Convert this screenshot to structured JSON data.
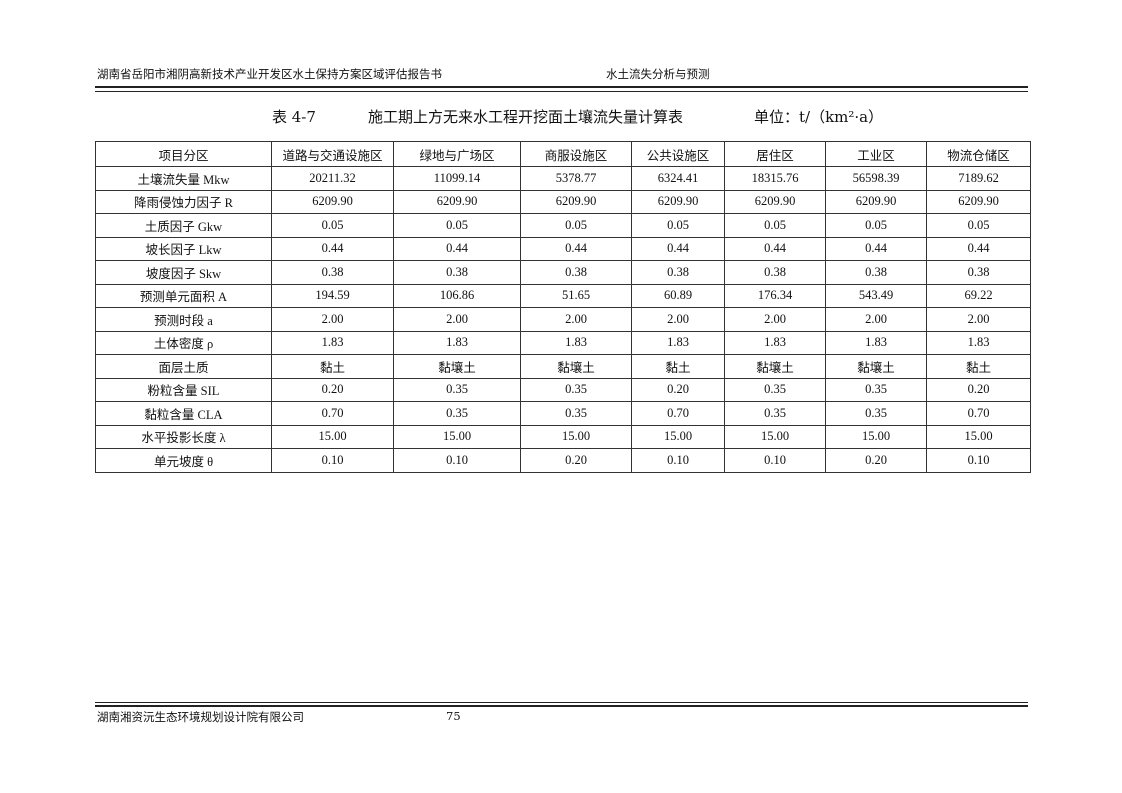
{
  "header": {
    "left": "湖南省岳阳市湘阴高新技术产业开发区水土保持方案区域评估报告书",
    "right": "水土流失分析与预测"
  },
  "caption": {
    "number": "表 4-7",
    "title": "施工期上方无来水工程开挖面土壤流失量计算表",
    "unit": "单位：t/（km²·a）"
  },
  "table": {
    "columns": [
      "项目分区",
      "道路与交通设施区",
      "绿地与广场区",
      "商服设施区",
      "公共设施区",
      "居住区",
      "工业区",
      "物流仓储区"
    ],
    "rows": [
      [
        "土壤流失量 Mkw",
        "20211.32",
        "11099.14",
        "5378.77",
        "6324.41",
        "18315.76",
        "56598.39",
        "7189.62"
      ],
      [
        "降雨侵蚀力因子 R",
        "6209.90",
        "6209.90",
        "6209.90",
        "6209.90",
        "6209.90",
        "6209.90",
        "6209.90"
      ],
      [
        "土质因子 Gkw",
        "0.05",
        "0.05",
        "0.05",
        "0.05",
        "0.05",
        "0.05",
        "0.05"
      ],
      [
        "坡长因子 Lkw",
        "0.44",
        "0.44",
        "0.44",
        "0.44",
        "0.44",
        "0.44",
        "0.44"
      ],
      [
        "坡度因子 Skw",
        "0.38",
        "0.38",
        "0.38",
        "0.38",
        "0.38",
        "0.38",
        "0.38"
      ],
      [
        "预测单元面积 A",
        "194.59",
        "106.86",
        "51.65",
        "60.89",
        "176.34",
        "543.49",
        "69.22"
      ],
      [
        "预测时段 a",
        "2.00",
        "2.00",
        "2.00",
        "2.00",
        "2.00",
        "2.00",
        "2.00"
      ],
      [
        "土体密度 ρ",
        "1.83",
        "1.83",
        "1.83",
        "1.83",
        "1.83",
        "1.83",
        "1.83"
      ],
      [
        "面层土质",
        "黏土",
        "黏壤土",
        "黏壤土",
        "黏土",
        "黏壤土",
        "黏壤土",
        "黏土"
      ],
      [
        "粉粒含量 SIL",
        "0.20",
        "0.35",
        "0.35",
        "0.20",
        "0.35",
        "0.35",
        "0.20"
      ],
      [
        "黏粒含量 CLA",
        "0.70",
        "0.35",
        "0.35",
        "0.70",
        "0.35",
        "0.35",
        "0.70"
      ],
      [
        "水平投影长度 λ",
        "15.00",
        "15.00",
        "15.00",
        "15.00",
        "15.00",
        "15.00",
        "15.00"
      ],
      [
        "单元坡度 θ",
        "0.10",
        "0.10",
        "0.20",
        "0.10",
        "0.10",
        "0.20",
        "0.10"
      ]
    ]
  },
  "footer": {
    "company": "湖南湘资沅生态环境规划设计院有限公司",
    "page": "75"
  }
}
